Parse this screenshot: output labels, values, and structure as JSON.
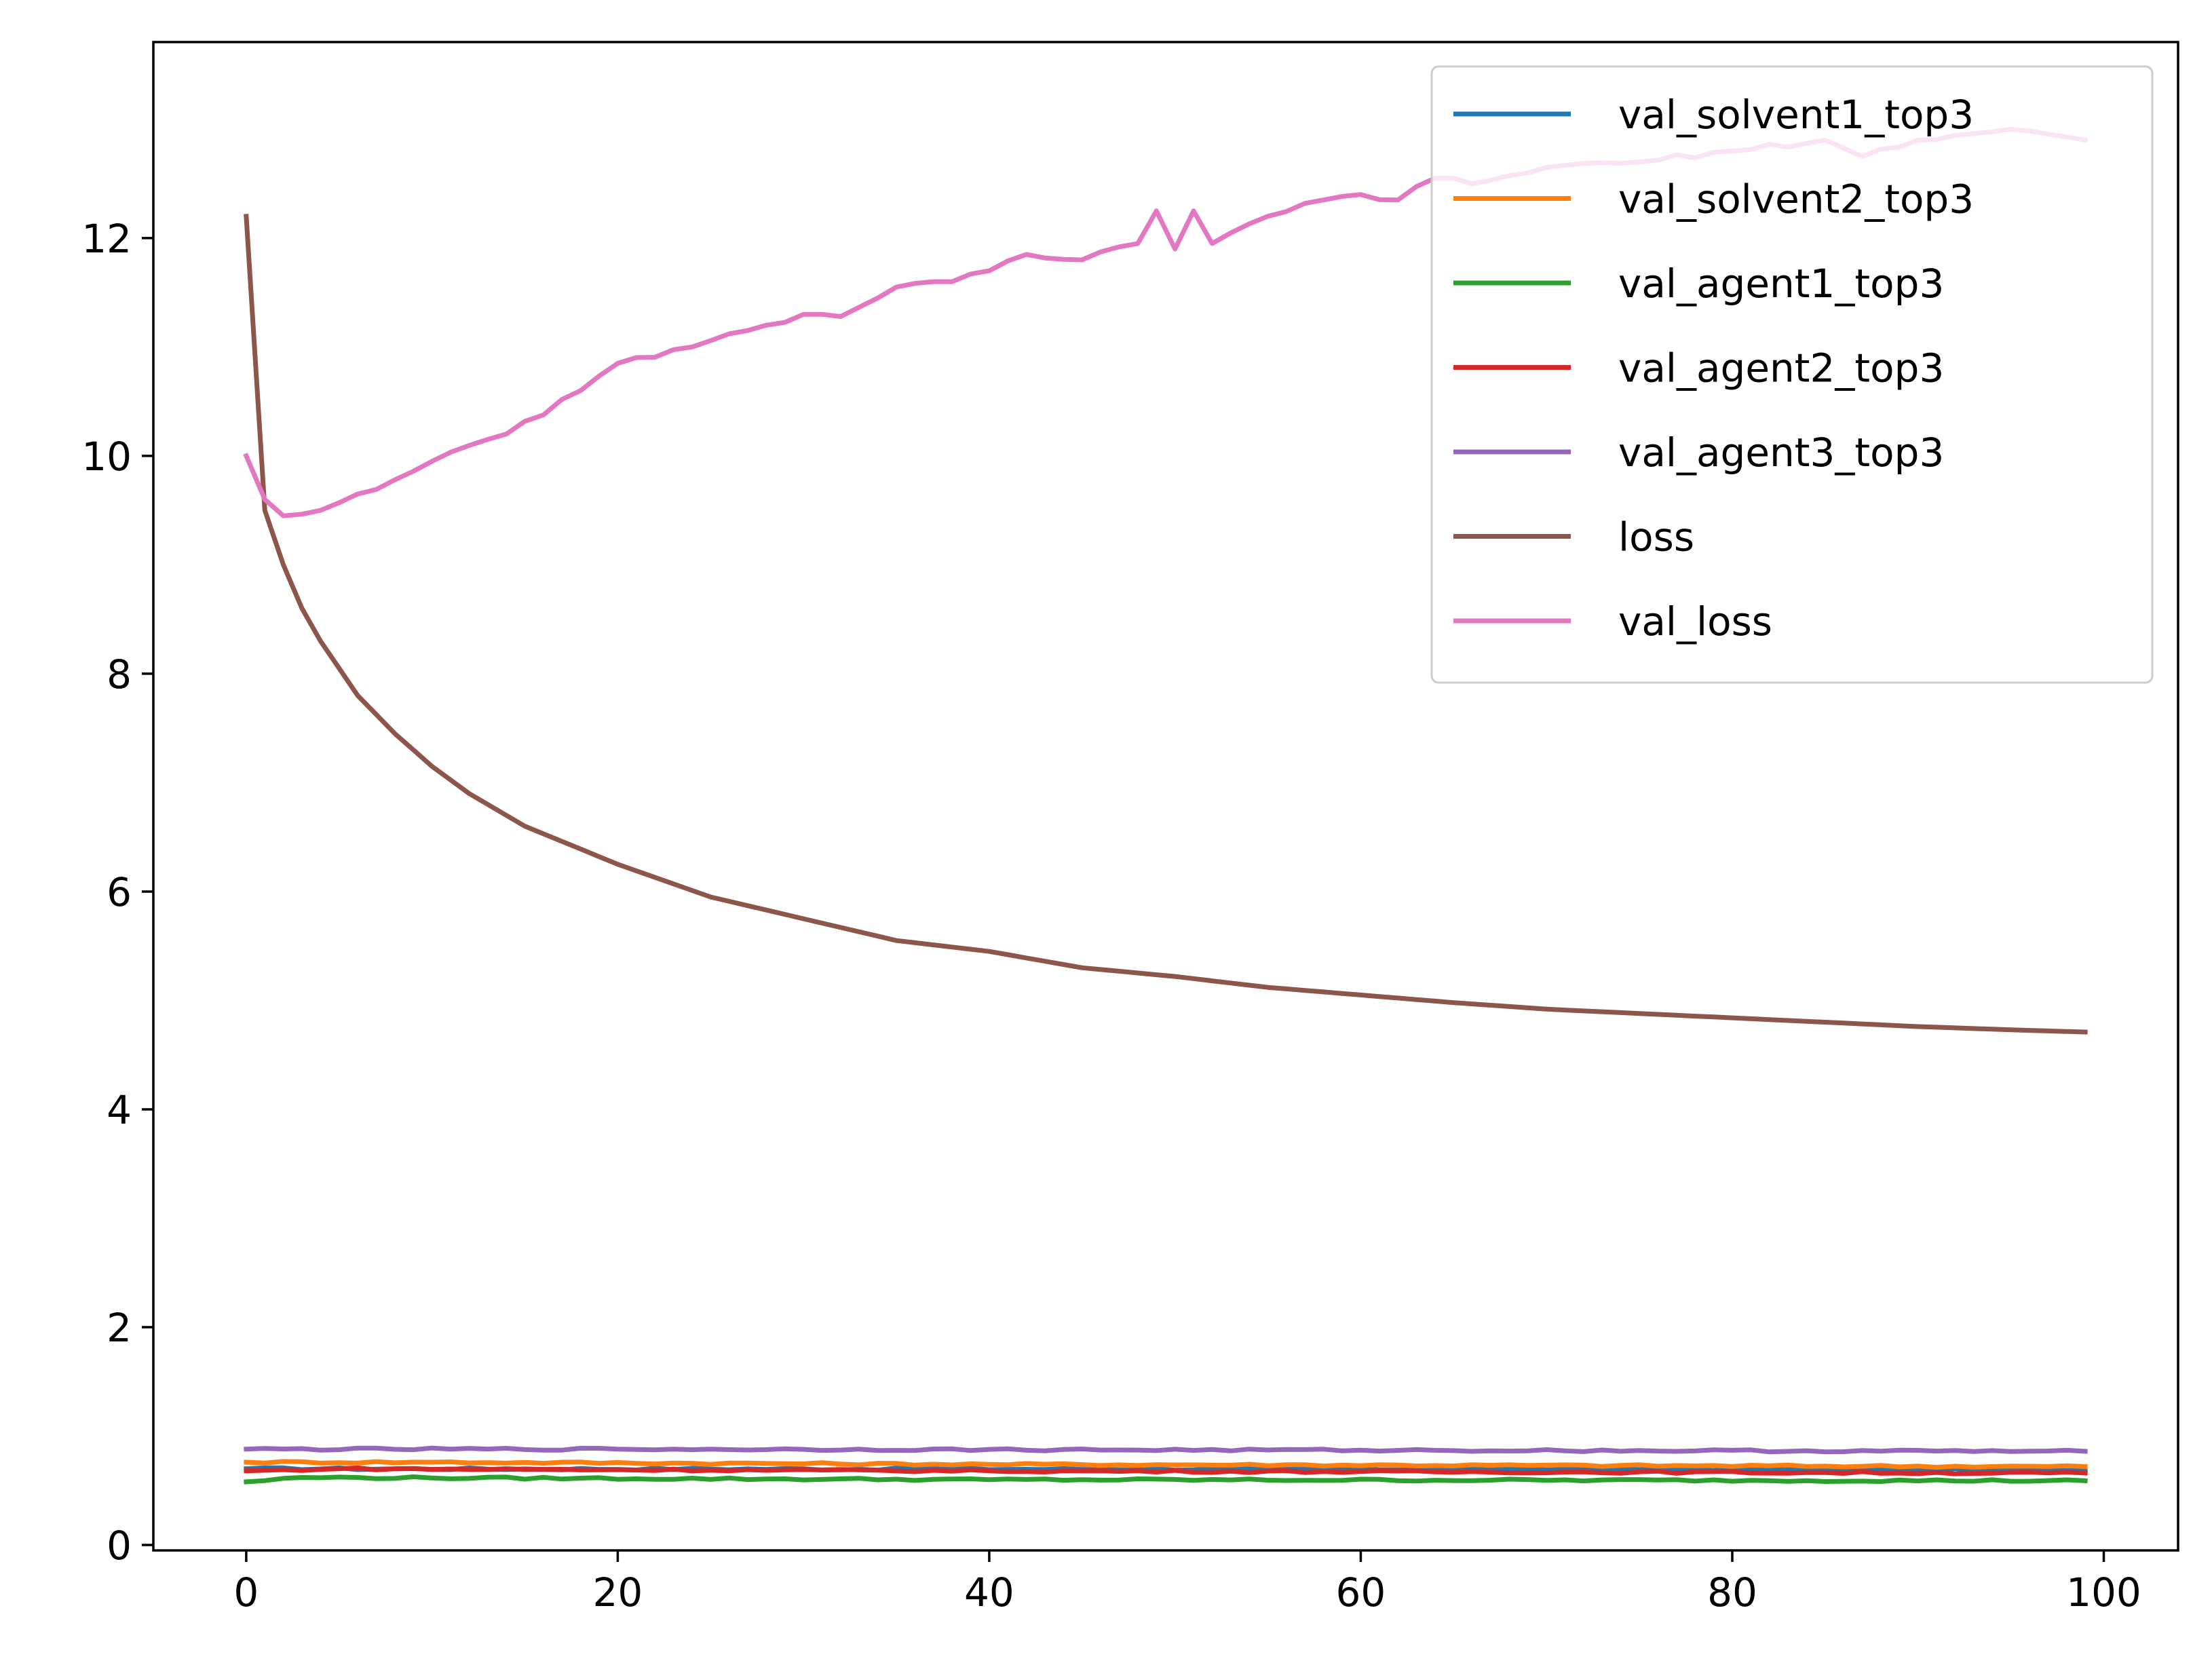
{
  "chart_data": {
    "type": "line",
    "x_range": [
      0,
      99
    ],
    "xlim": [
      -5,
      104
    ],
    "ylim": [
      0,
      13.8
    ],
    "x_ticks": [
      0,
      20,
      40,
      60,
      80,
      100
    ],
    "x_tick_labels": [
      "0",
      "20",
      "40",
      "60",
      "80",
      "100"
    ],
    "y_ticks": [
      0,
      2,
      4,
      6,
      8,
      10,
      12
    ],
    "y_tick_labels": [
      "0",
      "2",
      "4",
      "6",
      "8",
      "10",
      "12"
    ],
    "grid": false,
    "legend_position": "top-right",
    "series": [
      {
        "name": "val_solvent1_top3",
        "color": "#1f77b4",
        "keypoints": [
          [
            0,
            0.7
          ],
          [
            99,
            0.69
          ]
        ]
      },
      {
        "name": "val_solvent2_top3",
        "color": "#ff7f0e",
        "keypoints": [
          [
            0,
            0.76
          ],
          [
            10,
            0.76
          ],
          [
            40,
            0.74
          ],
          [
            99,
            0.72
          ]
        ]
      },
      {
        "name": "val_agent1_top3",
        "color": "#2ca02c",
        "keypoints": [
          [
            0,
            0.58
          ],
          [
            3,
            0.62
          ],
          [
            40,
            0.6
          ],
          [
            99,
            0.59
          ]
        ]
      },
      {
        "name": "val_agent2_top3",
        "color": "#d62728",
        "keypoints": [
          [
            0,
            0.68
          ],
          [
            5,
            0.7
          ],
          [
            40,
            0.68
          ],
          [
            99,
            0.66
          ]
        ]
      },
      {
        "name": "val_agent3_top3",
        "color": "#9467bd",
        "keypoints": [
          [
            0,
            0.88
          ],
          [
            20,
            0.88
          ],
          [
            60,
            0.87
          ],
          [
            99,
            0.86
          ]
        ]
      },
      {
        "name": "loss",
        "color": "#8c564b",
        "keypoints": [
          [
            0,
            12.2
          ],
          [
            1,
            9.5
          ],
          [
            2,
            9.0
          ],
          [
            3,
            8.6
          ],
          [
            4,
            8.3
          ],
          [
            5,
            8.05
          ],
          [
            6,
            7.8
          ],
          [
            8,
            7.45
          ],
          [
            10,
            7.15
          ],
          [
            12,
            6.9
          ],
          [
            15,
            6.6
          ],
          [
            20,
            6.25
          ],
          [
            25,
            5.95
          ],
          [
            30,
            5.75
          ],
          [
            35,
            5.55
          ],
          [
            40,
            5.45
          ],
          [
            45,
            5.3
          ],
          [
            50,
            5.22
          ],
          [
            55,
            5.12
          ],
          [
            60,
            5.05
          ],
          [
            65,
            4.98
          ],
          [
            70,
            4.92
          ],
          [
            75,
            4.88
          ],
          [
            80,
            4.84
          ],
          [
            85,
            4.8
          ],
          [
            90,
            4.76
          ],
          [
            95,
            4.73
          ],
          [
            99,
            4.71
          ]
        ]
      },
      {
        "name": "val_loss",
        "color": "#e377c2",
        "keypoints": [
          [
            0,
            10.0
          ],
          [
            1,
            9.6
          ],
          [
            2,
            9.45
          ],
          [
            4,
            9.5
          ],
          [
            6,
            9.65
          ],
          [
            8,
            9.78
          ],
          [
            10,
            9.95
          ],
          [
            14,
            10.2
          ],
          [
            18,
            10.6
          ],
          [
            20,
            10.85
          ],
          [
            24,
            11.0
          ],
          [
            28,
            11.2
          ],
          [
            30,
            11.3
          ],
          [
            32,
            11.28
          ],
          [
            35,
            11.55
          ],
          [
            38,
            11.6
          ],
          [
            40,
            11.7
          ],
          [
            42,
            11.85
          ],
          [
            45,
            11.8
          ],
          [
            48,
            11.95
          ],
          [
            49,
            12.25
          ],
          [
            50,
            11.9
          ],
          [
            51,
            12.25
          ],
          [
            52,
            11.95
          ],
          [
            55,
            12.2
          ],
          [
            58,
            12.35
          ],
          [
            60,
            12.4
          ],
          [
            62,
            12.35
          ],
          [
            64,
            12.55
          ],
          [
            66,
            12.5
          ],
          [
            70,
            12.65
          ],
          [
            75,
            12.7
          ],
          [
            80,
            12.8
          ],
          [
            85,
            12.9
          ],
          [
            87,
            12.75
          ],
          [
            90,
            12.9
          ],
          [
            95,
            13.0
          ],
          [
            99,
            12.9
          ]
        ]
      }
    ]
  }
}
